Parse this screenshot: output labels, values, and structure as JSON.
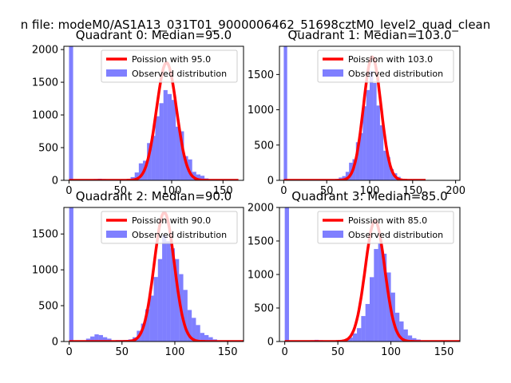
{
  "figure": {
    "suptitle": "n file: modeM0/AS1A13_031T01_9000006462_51698cztM0_level2_quad_clean"
  },
  "colors": {
    "hist": "#0000ff",
    "hist_alpha": 0.5,
    "fit_line": "#ff0000"
  },
  "chart_data": [
    {
      "type": "bar",
      "title": "Quadrant 0: Median=95.0",
      "xlim": [
        -5,
        170
      ],
      "ylim": [
        0,
        2050
      ],
      "xticks": [
        0,
        50,
        100,
        150
      ],
      "yticks": [
        0,
        500,
        1000,
        1500,
        2000
      ],
      "legend_position": "top-right",
      "legend": [
        {
          "kind": "line",
          "label": "Poission with 95.0"
        },
        {
          "kind": "patch",
          "label": "Observed distribution"
        }
      ],
      "poisson_mean": 95,
      "poisson_peak": 1800,
      "bin_width": 4,
      "bins": [
        [
          0,
          2050
        ],
        [
          24,
          20
        ],
        [
          28,
          25
        ],
        [
          32,
          20
        ],
        [
          36,
          15
        ],
        [
          52,
          10
        ],
        [
          56,
          20
        ],
        [
          60,
          50
        ],
        [
          64,
          120
        ],
        [
          68,
          260
        ],
        [
          72,
          300
        ],
        [
          76,
          570
        ],
        [
          80,
          680
        ],
        [
          84,
          980
        ],
        [
          88,
          1180
        ],
        [
          92,
          1380
        ],
        [
          96,
          1320
        ],
        [
          100,
          1230
        ],
        [
          104,
          820
        ],
        [
          108,
          750
        ],
        [
          112,
          370
        ],
        [
          116,
          320
        ],
        [
          120,
          130
        ],
        [
          124,
          90
        ],
        [
          128,
          70
        ],
        [
          132,
          30
        ],
        [
          136,
          15
        ],
        [
          140,
          10
        ]
      ]
    },
    {
      "type": "bar",
      "title": "Quadrant 1: Median=103.0",
      "xlim": [
        -5,
        205
      ],
      "ylim": [
        0,
        1900
      ],
      "xticks": [
        0,
        50,
        100,
        150,
        200
      ],
      "yticks": [
        0,
        500,
        1000,
        1500
      ],
      "legend_position": "top-right",
      "legend": [
        {
          "kind": "line",
          "label": "Poission with 103.0"
        },
        {
          "kind": "patch",
          "label": "Observed distribution"
        }
      ],
      "poisson_mean": 103,
      "poisson_peak": 1750,
      "bin_width": 4,
      "bins": [
        [
          0,
          1900
        ],
        [
          28,
          15
        ],
        [
          32,
          10
        ],
        [
          36,
          10
        ],
        [
          56,
          10
        ],
        [
          60,
          20
        ],
        [
          64,
          40
        ],
        [
          68,
          60
        ],
        [
          72,
          120
        ],
        [
          76,
          250
        ],
        [
          80,
          300
        ],
        [
          84,
          540
        ],
        [
          88,
          670
        ],
        [
          92,
          1050
        ],
        [
          96,
          1280
        ],
        [
          100,
          1550
        ],
        [
          104,
          1380
        ],
        [
          108,
          1060
        ],
        [
          112,
          780
        ],
        [
          116,
          420
        ],
        [
          120,
          330
        ],
        [
          124,
          160
        ],
        [
          128,
          100
        ],
        [
          132,
          50
        ],
        [
          136,
          20
        ],
        [
          140,
          10
        ]
      ]
    },
    {
      "type": "bar",
      "title": "Quadrant 2: Median=90.0",
      "xlim": [
        -5,
        165
      ],
      "ylim": [
        0,
        1870
      ],
      "xticks": [
        0,
        50,
        100,
        150
      ],
      "yticks": [
        0,
        500,
        1000,
        1500
      ],
      "legend_position": "top-right",
      "legend": [
        {
          "kind": "line",
          "label": "Poission with 90.0"
        },
        {
          "kind": "patch",
          "label": "Observed distribution"
        }
      ],
      "poisson_mean": 90,
      "poisson_peak": 1800,
      "bin_width": 4,
      "bins": [
        [
          0,
          1870
        ],
        [
          16,
          40
        ],
        [
          20,
          70
        ],
        [
          24,
          100
        ],
        [
          28,
          90
        ],
        [
          32,
          60
        ],
        [
          36,
          40
        ],
        [
          44,
          20
        ],
        [
          48,
          20
        ],
        [
          52,
          20
        ],
        [
          56,
          30
        ],
        [
          60,
          60
        ],
        [
          64,
          150
        ],
        [
          68,
          250
        ],
        [
          72,
          450
        ],
        [
          76,
          640
        ],
        [
          80,
          900
        ],
        [
          84,
          1150
        ],
        [
          88,
          1480
        ],
        [
          92,
          1400
        ],
        [
          96,
          1300
        ],
        [
          100,
          1150
        ],
        [
          104,
          940
        ],
        [
          108,
          720
        ],
        [
          112,
          440
        ],
        [
          116,
          330
        ],
        [
          120,
          230
        ],
        [
          124,
          120
        ],
        [
          128,
          90
        ],
        [
          132,
          60
        ],
        [
          136,
          30
        ],
        [
          140,
          15
        ]
      ]
    },
    {
      "type": "bar",
      "title": "Quadrant 3: Median=85.0",
      "xlim": [
        -5,
        165
      ],
      "ylim": [
        0,
        2000
      ],
      "xticks": [
        0,
        50,
        100,
        150
      ],
      "yticks": [
        0,
        500,
        1000,
        1500,
        2000
      ],
      "legend_position": "top-right",
      "legend": [
        {
          "kind": "line",
          "label": "Poission with 85.0"
        },
        {
          "kind": "patch",
          "label": "Observed distribution"
        }
      ],
      "poisson_mean": 85,
      "poisson_peak": 1800,
      "bin_width": 4,
      "bins": [
        [
          0,
          2000
        ],
        [
          24,
          20
        ],
        [
          28,
          25
        ],
        [
          32,
          20
        ],
        [
          36,
          15
        ],
        [
          48,
          10
        ],
        [
          52,
          15
        ],
        [
          56,
          25
        ],
        [
          60,
          60
        ],
        [
          64,
          120
        ],
        [
          68,
          200
        ],
        [
          72,
          380
        ],
        [
          76,
          560
        ],
        [
          80,
          960
        ],
        [
          84,
          1380
        ],
        [
          88,
          1470
        ],
        [
          92,
          1310
        ],
        [
          96,
          1030
        ],
        [
          100,
          730
        ],
        [
          104,
          430
        ],
        [
          108,
          300
        ],
        [
          112,
          180
        ],
        [
          116,
          90
        ],
        [
          120,
          50
        ],
        [
          124,
          30
        ],
        [
          128,
          15
        ]
      ]
    }
  ]
}
